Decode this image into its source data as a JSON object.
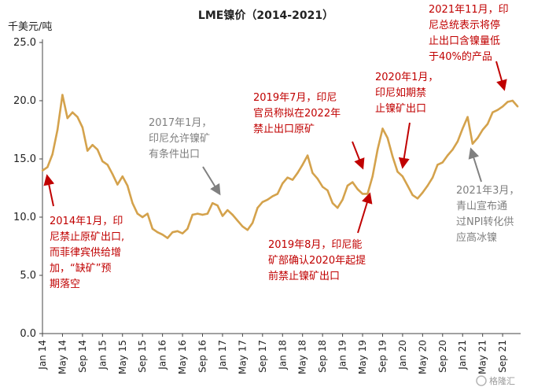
{
  "chart_data": {
    "type": "line",
    "title": "LME镍价（2014-2021）",
    "ylabel": "千美元/吨",
    "ylim": [
      0,
      25
    ],
    "yticks": [
      "0.0",
      "5.0",
      "10.0",
      "15.0",
      "20.0",
      "25.0"
    ],
    "xticks": [
      "Jan 14",
      "May 14",
      "Sep 14",
      "Jan 15",
      "May 15",
      "Sep 15",
      "Jan 16",
      "May 16",
      "Sep 16",
      "Jan 17",
      "May 17",
      "Sep 17",
      "Jan 18",
      "May 18",
      "Sep 18",
      "Jan 19",
      "May 19",
      "Sep 19",
      "Jan 20",
      "May 20",
      "Sep 20",
      "Jan 21",
      "May 21",
      "Sep 21"
    ],
    "grid": false,
    "line_color": "#d4a24c",
    "x_start": "2014-01",
    "x_end": "2021-12",
    "series": [
      {
        "name": "",
        "x": [
          "2014-01",
          "2014-02",
          "2014-03",
          "2014-04",
          "2014-05",
          "2014-06",
          "2014-07",
          "2014-08",
          "2014-09",
          "2014-10",
          "2014-11",
          "2014-12",
          "2015-01",
          "2015-02",
          "2015-03",
          "2015-04",
          "2015-05",
          "2015-06",
          "2015-07",
          "2015-08",
          "2015-09",
          "2015-10",
          "2015-11",
          "2015-12",
          "2016-01",
          "2016-02",
          "2016-03",
          "2016-04",
          "2016-05",
          "2016-06",
          "2016-07",
          "2016-08",
          "2016-09",
          "2016-10",
          "2016-11",
          "2016-12",
          "2017-01",
          "2017-02",
          "2017-03",
          "2017-04",
          "2017-05",
          "2017-06",
          "2017-07",
          "2017-08",
          "2017-09",
          "2017-10",
          "2017-11",
          "2017-12",
          "2018-01",
          "2018-02",
          "2018-03",
          "2018-04",
          "2018-05",
          "2018-06",
          "2018-07",
          "2018-08",
          "2018-09",
          "2018-10",
          "2018-11",
          "2018-12",
          "2019-01",
          "2019-02",
          "2019-03",
          "2019-04",
          "2019-05",
          "2019-06",
          "2019-07",
          "2019-08",
          "2019-09",
          "2019-10",
          "2019-11",
          "2019-12",
          "2020-01",
          "2020-02",
          "2020-03",
          "2020-04",
          "2020-05",
          "2020-06",
          "2020-07",
          "2020-08",
          "2020-09",
          "2020-10",
          "2020-11",
          "2020-12",
          "2021-01",
          "2021-02",
          "2021-03",
          "2021-04",
          "2021-05",
          "2021-06",
          "2021-07",
          "2021-08",
          "2021-09",
          "2021-10",
          "2021-11",
          "2021-12"
        ],
        "values": [
          14.0,
          14.3,
          15.4,
          17.5,
          20.5,
          18.5,
          19.0,
          18.6,
          17.7,
          15.7,
          16.2,
          15.8,
          14.8,
          14.5,
          13.7,
          12.8,
          13.5,
          12.7,
          11.2,
          10.3,
          10.0,
          10.3,
          9.0,
          8.7,
          8.5,
          8.2,
          8.7,
          8.8,
          8.6,
          9.0,
          10.2,
          10.3,
          10.2,
          10.3,
          11.2,
          11.0,
          10.1,
          10.6,
          10.2,
          9.7,
          9.2,
          8.9,
          9.5,
          10.8,
          11.3,
          11.5,
          11.8,
          12.0,
          12.9,
          13.4,
          13.2,
          13.8,
          14.5,
          15.3,
          13.8,
          13.3,
          12.6,
          12.3,
          11.2,
          10.8,
          11.5,
          12.7,
          13.0,
          12.4,
          12.0,
          12.0,
          13.5,
          15.8,
          17.6,
          16.8,
          15.2,
          13.9,
          13.5,
          12.7,
          11.9,
          11.6,
          12.1,
          12.7,
          13.4,
          14.5,
          14.7,
          15.3,
          15.8,
          16.5,
          17.6,
          18.6,
          16.3,
          16.8,
          17.5,
          18.0,
          19.0,
          19.2,
          19.5,
          19.9,
          20.0,
          19.5
        ]
      }
    ],
    "annotations": [
      {
        "lines": [
          "2014年1月，印",
          "尼禁止原矿出口,",
          "而菲律宾供给增",
          "加，“缺矿”预",
          "期落空"
        ],
        "color": "red"
      },
      {
        "lines": [
          "2017年1月，",
          "印尼允许镍矿",
          "有条件出口"
        ],
        "color": "gray"
      },
      {
        "lines": [
          "2019年7月，印尼",
          "官员称拟在2022年",
          "禁止出口原矿"
        ],
        "color": "red"
      },
      {
        "lines": [
          "2019年8月，印尼能",
          "矿部确认2020年起提",
          "前禁止镍矿出口"
        ],
        "color": "red"
      },
      {
        "lines": [
          "2020年1月，",
          "印尼如期禁",
          "止镍矿出口"
        ],
        "color": "red"
      },
      {
        "lines": [
          "2021年11月，印",
          "尼总统表示将停",
          "止出口含镍量低",
          "于40%的产品"
        ],
        "color": "red"
      },
      {
        "lines": [
          "2021年3月，",
          "青山宣布通",
          "过NPI转化供",
          "应高冰镍"
        ],
        "color": "gray"
      }
    ]
  },
  "colors": {
    "red": "#c00000",
    "gray": "#808080",
    "axis": "#444444"
  },
  "watermark": "格隆汇"
}
